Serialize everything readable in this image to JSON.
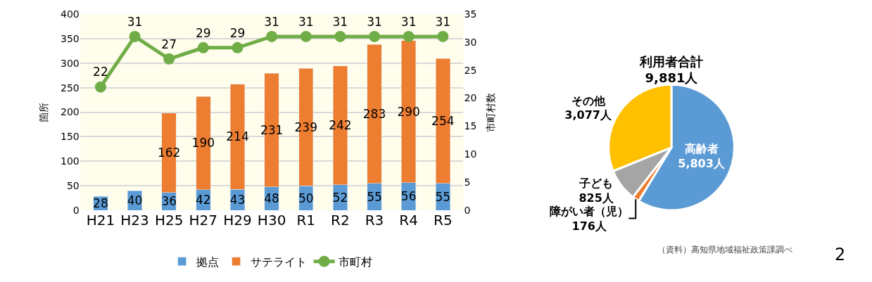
{
  "chart_data": [
    {
      "type": "bar",
      "stacked": true,
      "categories": [
        "H21",
        "H23",
        "H25",
        "H27",
        "H29",
        "H30",
        "R1",
        "R2",
        "R3",
        "R4",
        "R5"
      ],
      "series": [
        {
          "name": "拠点",
          "color": "#5b9bd5",
          "values": [
            28,
            40,
            36,
            42,
            43,
            48,
            50,
            52,
            55,
            56,
            55
          ]
        },
        {
          "name": "サテライト",
          "color": "#ed7d31",
          "values": [
            null,
            null,
            162,
            190,
            214,
            231,
            239,
            242,
            283,
            290,
            254
          ]
        },
        {
          "name": "市町村",
          "color": "#70ad47",
          "type": "line",
          "axis": "y2",
          "marker": "circle",
          "values": [
            22,
            31,
            27,
            29,
            29,
            31,
            31,
            31,
            31,
            31,
            31
          ]
        }
      ],
      "ylabel": "箇所",
      "y2label": "市町村数",
      "ylim": [
        0,
        400
      ],
      "yticks": [
        0,
        50,
        100,
        150,
        200,
        250,
        300,
        350,
        400
      ],
      "y2lim": [
        0,
        35
      ],
      "y2ticks": [
        0,
        5,
        10,
        15,
        20,
        25,
        30,
        35
      ],
      "grid": "y",
      "legend": "bottom",
      "data_labels": true
    },
    {
      "type": "pie",
      "title": "利用者合計\n9,881人",
      "categories": [
        "高齢者",
        "障がい者（児）",
        "子ども",
        "その他"
      ],
      "values": [
        5803,
        176,
        825,
        3077
      ],
      "value_labels": [
        "5,803人",
        "176人",
        "825人",
        "3,077人"
      ],
      "colors": [
        "#5b9bd5",
        "#ed7d31",
        "#a5a5a5",
        "#ffc000"
      ],
      "legend": false,
      "annotations": [
        "（資料）高知県地域福祉政策課調べ",
        "2"
      ]
    }
  ]
}
